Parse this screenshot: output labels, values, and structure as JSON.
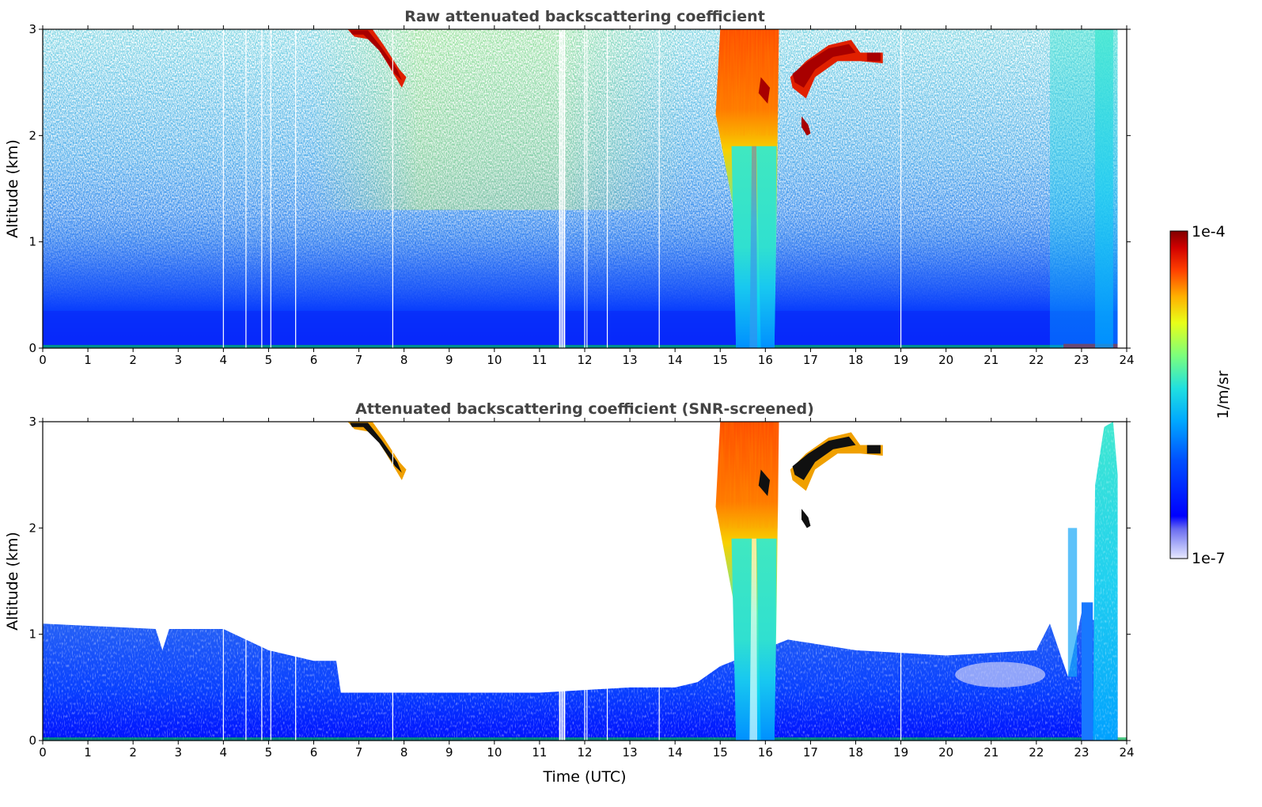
{
  "chart_data": [
    {
      "type": "heatmap",
      "title": "Raw attenuated backscattering coefficient",
      "xlabel": "",
      "ylabel": "Altitude (km)",
      "xlim": [
        0,
        24
      ],
      "ylim": [
        0,
        3
      ],
      "x_ticks": [
        "0",
        "1",
        "2",
        "3",
        "4",
        "5",
        "6",
        "7",
        "8",
        "9",
        "10",
        "11",
        "12",
        "13",
        "14",
        "15",
        "16",
        "17",
        "18",
        "19",
        "20",
        "21",
        "22",
        "23",
        "24"
      ],
      "y_ticks": [
        "0",
        "1",
        "2",
        "3"
      ],
      "colormap": "jet",
      "color_scale": "log",
      "features": [
        {
          "kind": "near-surface aerosol layer",
          "x_range": [
            0,
            24
          ],
          "y_range": [
            0,
            0.4
          ],
          "level": "1e-6"
        },
        {
          "kind": "noisy background increasing with altitude",
          "x_range": [
            0,
            24
          ],
          "y_range": [
            0.4,
            3
          ],
          "level": "1e-6 to 1e-5"
        },
        {
          "kind": "thick cloud / precipitation",
          "x_range": [
            15.0,
            16.3
          ],
          "y_range": [
            0,
            3
          ],
          "level": "up to 1e-4"
        },
        {
          "kind": "cloud layer",
          "x_range": [
            6.7,
            8.0
          ],
          "y_range": [
            2.5,
            3
          ],
          "level": "1e-4"
        },
        {
          "kind": "cloud layer",
          "x_range": [
            16.5,
            18.5
          ],
          "y_range": [
            2.6,
            2.9
          ],
          "level": "1e-4"
        },
        {
          "kind": "cloud fragment",
          "x_range": [
            16.8,
            17.0
          ],
          "y_range": [
            2.0,
            2.2
          ],
          "level": "1e-4"
        },
        {
          "kind": "low aerosol/cloud layer",
          "x_range": [
            22.3,
            23.8
          ],
          "y_range": [
            0,
            3
          ],
          "level": "1e-6 to 1e-5"
        }
      ]
    },
    {
      "type": "heatmap",
      "title": "Attenuated backscattering coefficient (SNR-screened)",
      "xlabel": "Time (UTC)",
      "ylabel": "Altitude (km)",
      "xlim": [
        0,
        24
      ],
      "ylim": [
        0,
        3
      ],
      "x_ticks": [
        "0",
        "1",
        "2",
        "3",
        "4",
        "5",
        "6",
        "7",
        "8",
        "9",
        "10",
        "11",
        "12",
        "13",
        "14",
        "15",
        "16",
        "17",
        "18",
        "19",
        "20",
        "21",
        "22",
        "23",
        "24"
      ],
      "y_ticks": [
        "0",
        "1",
        "2",
        "3"
      ],
      "colormap": "jet",
      "color_scale": "log",
      "boundary_layer_top_km": [
        [
          0,
          1.1
        ],
        [
          2.5,
          1.05
        ],
        [
          2.65,
          0.85
        ],
        [
          2.8,
          1.05
        ],
        [
          4.0,
          1.05
        ],
        [
          5.0,
          0.85
        ],
        [
          6.0,
          0.75
        ],
        [
          6.5,
          0.75
        ],
        [
          6.6,
          0.45
        ],
        [
          8.0,
          0.45
        ],
        [
          11.0,
          0.45
        ],
        [
          13.0,
          0.5
        ],
        [
          14.0,
          0.5
        ],
        [
          14.5,
          0.55
        ],
        [
          15.0,
          0.7
        ],
        [
          16.5,
          0.95
        ],
        [
          18.0,
          0.85
        ],
        [
          20.0,
          0.8
        ],
        [
          22.0,
          0.85
        ],
        [
          22.3,
          1.1
        ],
        [
          22.7,
          0.6
        ],
        [
          23.0,
          1.2
        ],
        [
          23.8,
          1.0
        ]
      ],
      "features": [
        {
          "kind": "thick cloud / precipitation",
          "x_range": [
            15.0,
            16.3
          ],
          "y_range": [
            0,
            3
          ],
          "level": "up to 1e-4"
        },
        {
          "kind": "cloud layer (saturated)",
          "x_range": [
            6.7,
            8.0
          ],
          "y_range": [
            2.5,
            3
          ],
          "level": "above 1e-4"
        },
        {
          "kind": "cloud layer (saturated)",
          "x_range": [
            16.5,
            18.5
          ],
          "y_range": [
            2.6,
            2.9
          ],
          "level": "above 1e-4"
        },
        {
          "kind": "cloud fragment (saturated)",
          "x_range": [
            16.8,
            17.0
          ],
          "y_range": [
            2.0,
            2.2
          ],
          "level": "above 1e-4"
        },
        {
          "kind": "aerosol plume",
          "x_range": [
            23.0,
            23.8
          ],
          "y_range": [
            0,
            3
          ],
          "level": "1e-6 to 1e-5"
        }
      ]
    }
  ],
  "colorbar": {
    "label": "1/m/sr",
    "max_label": "1e-4",
    "min_label": "1e-7",
    "range": [
      1e-07,
      0.0001
    ],
    "scale": "log",
    "colormap": "jet"
  }
}
